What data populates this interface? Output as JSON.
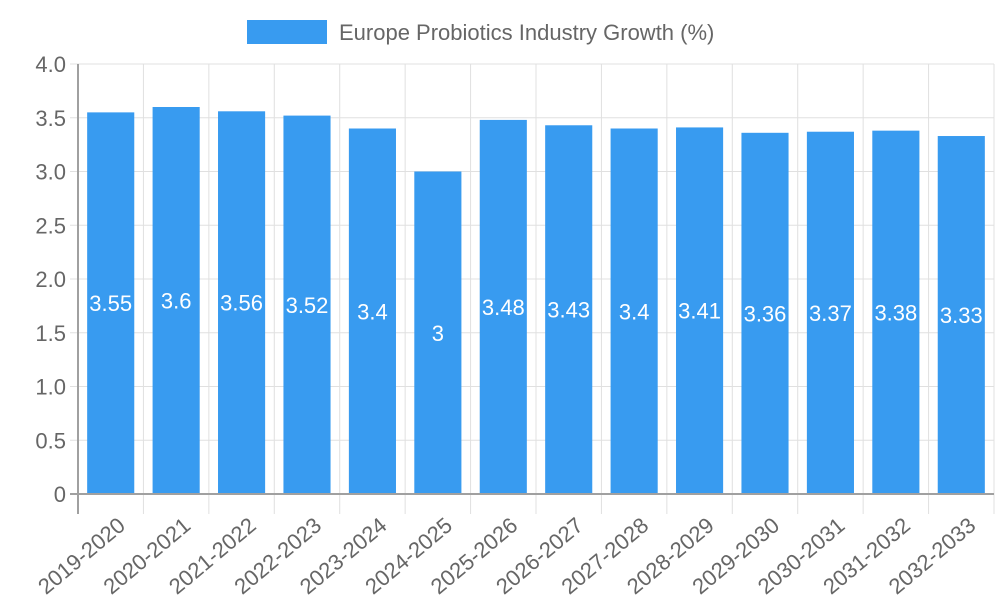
{
  "chart_data": {
    "type": "bar",
    "title": "",
    "legend": [
      {
        "label": "Europe Probiotics Industry Growth (%)",
        "color": "#389bf0"
      }
    ],
    "legend_position": "top",
    "categories": [
      "2019-2020",
      "2020-2021",
      "2021-2022",
      "2022-2023",
      "2023-2024",
      "2024-2025",
      "2025-2026",
      "2026-2027",
      "2027-2028",
      "2028-2029",
      "2029-2030",
      "2030-2031",
      "2031-2032",
      "2032-2033"
    ],
    "series": [
      {
        "name": "Europe Probiotics Industry Growth (%)",
        "values": [
          3.55,
          3.6,
          3.56,
          3.52,
          3.4,
          3,
          3.48,
          3.43,
          3.4,
          3.41,
          3.36,
          3.37,
          3.38,
          3.33
        ]
      }
    ],
    "data_labels": [
      "3.55",
      "3.6",
      "3.56",
      "3.52",
      "3.4",
      "3",
      "3.48",
      "3.43",
      "3.4",
      "3.41",
      "3.36",
      "3.37",
      "3.38",
      "3.33"
    ],
    "y_ticks": [
      "0",
      "0.5",
      "1.0",
      "1.5",
      "2.0",
      "2.5",
      "3.0",
      "3.5",
      "4.0"
    ],
    "ylim": [
      0,
      4.0
    ],
    "xlabel": "",
    "ylabel": "",
    "grid": true,
    "colors": {
      "bar": "#389bf0",
      "grid": "#e0e0e0",
      "axis": "#a0a0a0",
      "text": "#666666"
    }
  }
}
